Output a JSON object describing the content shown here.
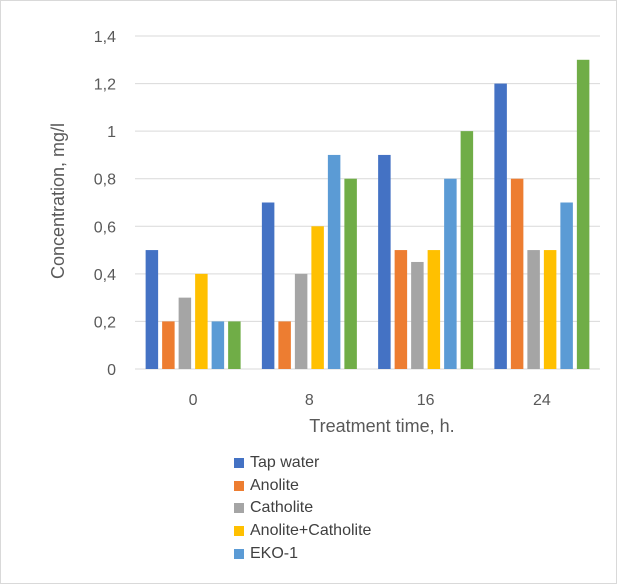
{
  "chart_data": {
    "type": "bar",
    "xlabel": "Treatment time, h.",
    "ylabel": "Concentration, mg/l",
    "categories": [
      "0",
      "8",
      "16",
      "24"
    ],
    "ylim": [
      0,
      1.4
    ],
    "yticks": [
      "0",
      "0,2",
      "0,4",
      "0,6",
      "0,8",
      "1",
      "1,2",
      "1,4"
    ],
    "grid": true,
    "legend_position": "bottom",
    "series": [
      {
        "name": "Tap water",
        "color": "#4472C4",
        "values": [
          0.5,
          0.7,
          0.9,
          1.2
        ]
      },
      {
        "name": "Anolite",
        "color": "#ED7D31",
        "values": [
          0.2,
          0.2,
          0.5,
          0.8
        ]
      },
      {
        "name": "Catholite",
        "color": "#A5A5A5",
        "values": [
          0.3,
          0.4,
          0.45,
          0.5
        ]
      },
      {
        "name": "Anolite+Catholite",
        "color": "#FFC000",
        "values": [
          0.4,
          0.6,
          0.5,
          0.5
        ]
      },
      {
        "name": "EKO-1",
        "color": "#5B9BD5",
        "values": [
          0.2,
          0.9,
          0.8,
          0.7
        ]
      },
      {
        "name": "",
        "color": "#70AD47",
        "values": [
          0.2,
          0.8,
          1.0,
          1.3
        ]
      }
    ]
  }
}
